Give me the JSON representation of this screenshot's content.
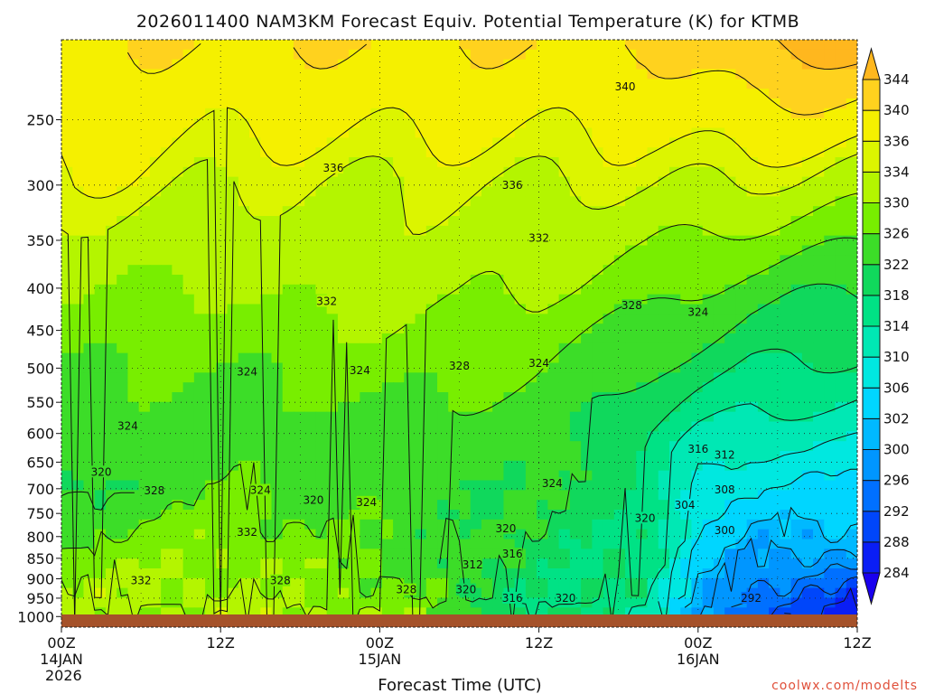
{
  "chart_data": {
    "type": "heatmap",
    "title": "2026011400 NAM3KM Forecast Equiv. Potential Temperature (K) for KTMB",
    "xlabel": "Forecast Time (UTC)",
    "ylabel": "",
    "credit": "coolwx.com/modelts",
    "xlim": [
      0,
      60
    ],
    "x_ticks": [
      {
        "hour": 0,
        "label": "00Z",
        "sub1": "14JAN",
        "sub2": "2026"
      },
      {
        "hour": 12,
        "label": "12Z",
        "sub1": "",
        "sub2": ""
      },
      {
        "hour": 24,
        "label": "00Z",
        "sub1": "15JAN",
        "sub2": ""
      },
      {
        "hour": 36,
        "label": "12Z",
        "sub1": "",
        "sub2": ""
      },
      {
        "hour": 48,
        "label": "00Z",
        "sub1": "16JAN",
        "sub2": ""
      },
      {
        "hour": 60,
        "label": "12Z",
        "sub1": "",
        "sub2": ""
      }
    ],
    "ylim_hpa": [
      1030,
      200
    ],
    "y_ticks": [
      250,
      300,
      350,
      400,
      450,
      500,
      550,
      600,
      650,
      700,
      750,
      800,
      850,
      900,
      950,
      1000
    ],
    "colorbar": {
      "levels": [
        284,
        288,
        292,
        296,
        300,
        302,
        306,
        310,
        314,
        318,
        322,
        326,
        330,
        334,
        336,
        340,
        344
      ],
      "colors": [
        "#1a00ee",
        "#0a1ef5",
        "#0046fa",
        "#0070ff",
        "#0096ff",
        "#00b9ff",
        "#00d6ff",
        "#00e8e0",
        "#00e8b4",
        "#00e285",
        "#10d85c",
        "#3cdd28",
        "#78ee00",
        "#b4f500",
        "#dcf500",
        "#f5f000",
        "#ffd21e",
        "#ffb71e"
      ]
    },
    "field_profile": [
      {
        "hpa": 1000,
        "h0": 330,
        "h12": 332,
        "h24": 330,
        "h36": 318,
        "h44": 314,
        "h48": 300,
        "h52": 292,
        "h60": 286
      },
      {
        "hpa": 925,
        "h0": 332,
        "h12": 330,
        "h24": 328,
        "h36": 318,
        "h44": 316,
        "h48": 302,
        "h52": 296,
        "h60": 290
      },
      {
        "hpa": 850,
        "h0": 328,
        "h12": 330,
        "h24": 326,
        "h36": 320,
        "h44": 316,
        "h48": 304,
        "h52": 300,
        "h60": 298
      },
      {
        "hpa": 700,
        "h0": 320,
        "h12": 326,
        "h24": 324,
        "h36": 322,
        "h44": 318,
        "h48": 308,
        "h52": 306,
        "h60": 305
      },
      {
        "hpa": 600,
        "h0": 324,
        "h12": 324,
        "h24": 324,
        "h36": 324,
        "h44": 318,
        "h48": 314,
        "h52": 312,
        "h60": 311
      },
      {
        "hpa": 500,
        "h0": 326,
        "h12": 326,
        "h24": 328,
        "h36": 326,
        "h44": 322,
        "h48": 320,
        "h52": 318,
        "h60": 317
      },
      {
        "hpa": 400,
        "h0": 330,
        "h12": 330,
        "h24": 332,
        "h36": 330,
        "h44": 328,
        "h48": 326,
        "h52": 324,
        "h60": 322
      },
      {
        "hpa": 300,
        "h0": 336,
        "h12": 334,
        "h24": 334,
        "h36": 334,
        "h44": 334,
        "h48": 334,
        "h52": 334,
        "h60": 332
      },
      {
        "hpa": 200,
        "h0": 340,
        "h12": 340,
        "h24": 340,
        "h36": 340,
        "h44": 340,
        "h48": 342,
        "h52": 344,
        "h60": 346
      }
    ],
    "contour_labels": [
      {
        "text": "340",
        "hour": 42.5,
        "hpa": 228
      },
      {
        "text": "336",
        "hour": 20.5,
        "hpa": 286
      },
      {
        "text": "336",
        "hour": 34,
        "hpa": 300
      },
      {
        "text": "332",
        "hour": 36,
        "hpa": 348
      },
      {
        "text": "332",
        "hour": 20,
        "hpa": 415
      },
      {
        "text": "328",
        "hour": 43,
        "hpa": 420
      },
      {
        "text": "324",
        "hour": 48,
        "hpa": 428
      },
      {
        "text": "324",
        "hour": 14,
        "hpa": 505
      },
      {
        "text": "324",
        "hour": 22.5,
        "hpa": 503
      },
      {
        "text": "328",
        "hour": 30,
        "hpa": 497
      },
      {
        "text": "324",
        "hour": 36,
        "hpa": 493
      },
      {
        "text": "324",
        "hour": 5,
        "hpa": 588
      },
      {
        "text": "320",
        "hour": 3,
        "hpa": 668
      },
      {
        "text": "316",
        "hour": 48,
        "hpa": 627
      },
      {
        "text": "312",
        "hour": 50,
        "hpa": 637
      },
      {
        "text": "328",
        "hour": 7,
        "hpa": 704
      },
      {
        "text": "324",
        "hour": 15,
        "hpa": 703
      },
      {
        "text": "320",
        "hour": 19,
        "hpa": 723
      },
      {
        "text": "324",
        "hour": 23,
        "hpa": 727
      },
      {
        "text": "324",
        "hour": 37,
        "hpa": 690
      },
      {
        "text": "308",
        "hour": 50,
        "hpa": 702
      },
      {
        "text": "304",
        "hour": 47,
        "hpa": 733
      },
      {
        "text": "320",
        "hour": 44,
        "hpa": 760
      },
      {
        "text": "320",
        "hour": 33.5,
        "hpa": 782
      },
      {
        "text": "300",
        "hour": 50,
        "hpa": 786
      },
      {
        "text": "332",
        "hour": 14,
        "hpa": 790
      },
      {
        "text": "316",
        "hour": 34,
        "hpa": 840
      },
      {
        "text": "312",
        "hour": 31,
        "hpa": 865
      },
      {
        "text": "332",
        "hour": 6,
        "hpa": 905
      },
      {
        "text": "328",
        "hour": 16.5,
        "hpa": 905
      },
      {
        "text": "328",
        "hour": 26,
        "hpa": 928
      },
      {
        "text": "320",
        "hour": 30.5,
        "hpa": 928
      },
      {
        "text": "316",
        "hour": 34,
        "hpa": 950
      },
      {
        "text": "320",
        "hour": 38,
        "hpa": 950
      },
      {
        "text": "292",
        "hour": 52,
        "hpa": 950
      }
    ]
  }
}
